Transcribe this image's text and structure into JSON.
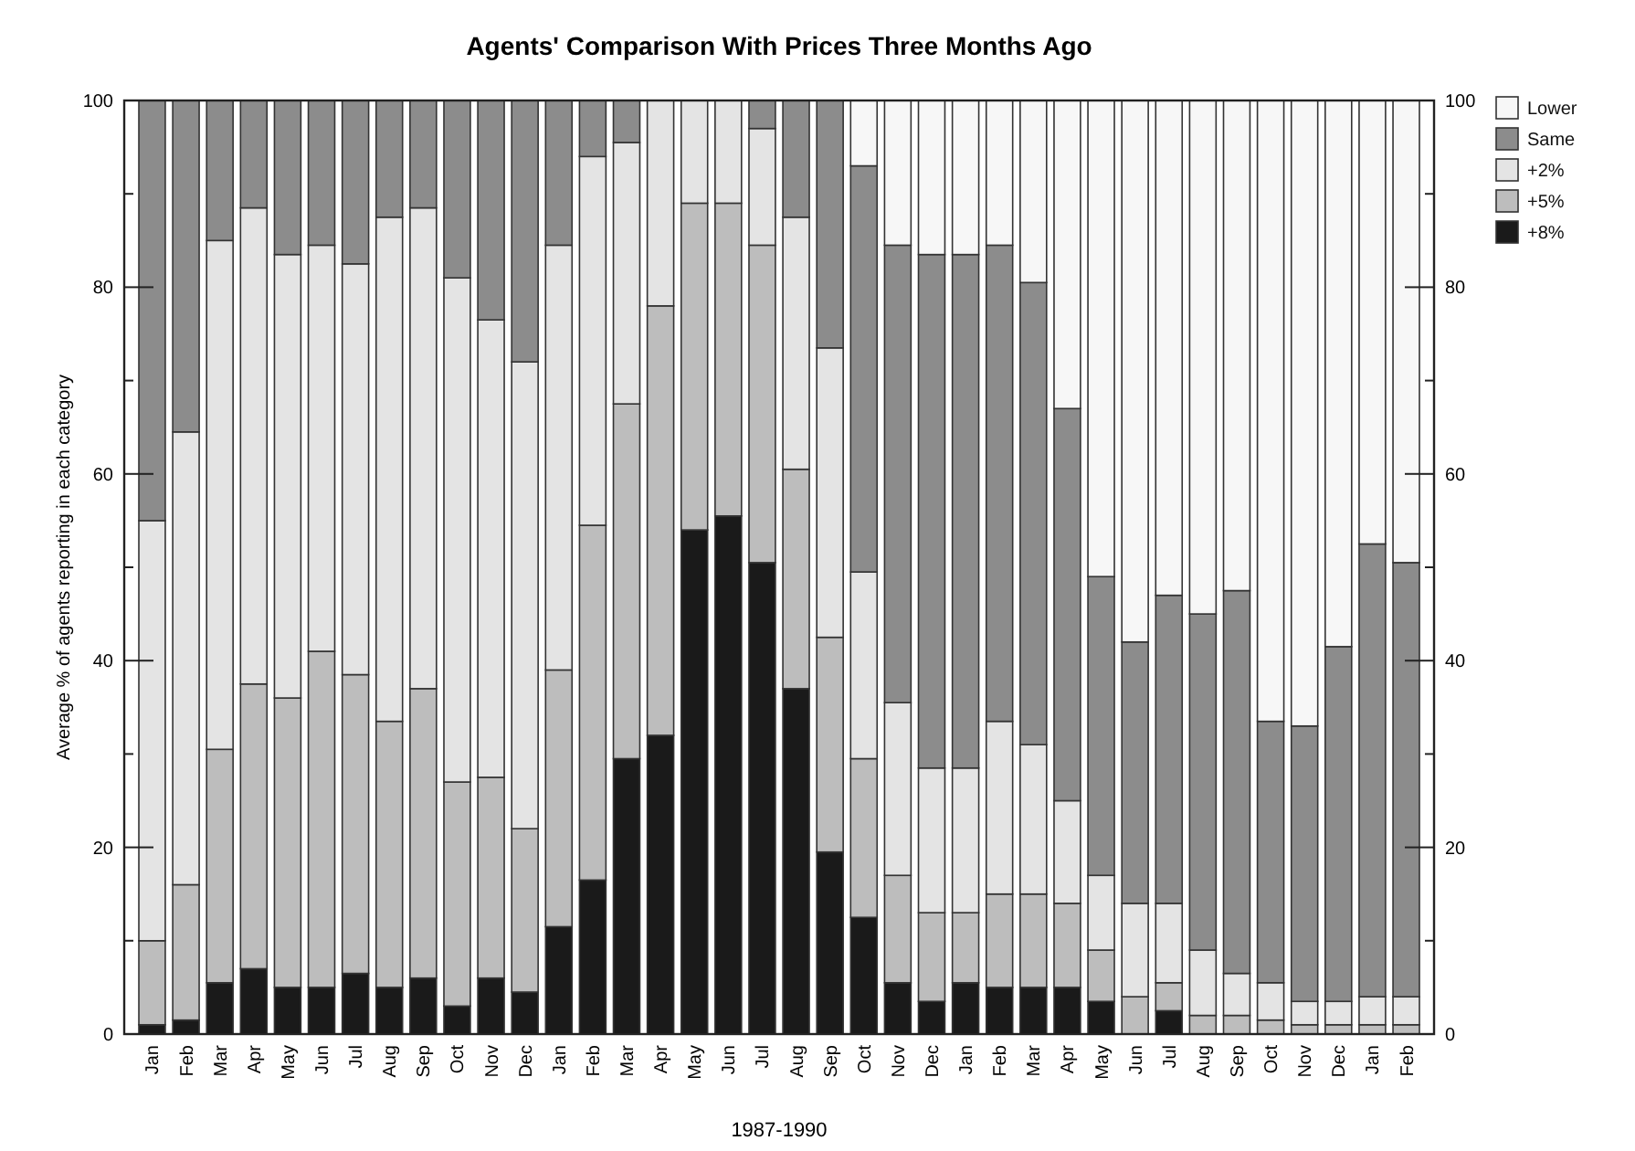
{
  "chart_data": {
    "type": "bar",
    "stacked": true,
    "title": "Agents' Comparison With Prices Three Months Ago",
    "xlabel": "1987-1990",
    "ylabel": "Average % of agents reporting in each category",
    "categories": [
      "Jan",
      "Feb",
      "Mar",
      "Apr",
      "May",
      "Jun",
      "Jul",
      "Aug",
      "Sep",
      "Oct",
      "Nov",
      "Dec",
      "Jan",
      "Feb",
      "Mar",
      "Apr",
      "May",
      "Jun",
      "Jul",
      "Aug",
      "Sep",
      "Oct",
      "Nov",
      "Dec",
      "Jan",
      "Feb",
      "Mar",
      "Apr",
      "May",
      "Jun",
      "Jul",
      "Aug",
      "Sep",
      "Oct",
      "Nov",
      "Dec",
      "Jan",
      "Feb"
    ],
    "series": [
      {
        "name": "+8%",
        "color": "#1a1a1a",
        "values": [
          1,
          1.5,
          5.5,
          7,
          5,
          5,
          6.5,
          5,
          6,
          3,
          6,
          4.5,
          11.5,
          16.5,
          29.5,
          32,
          54,
          55.5,
          50.5,
          37,
          19.5,
          12.5,
          5.5,
          3.5,
          5.5,
          5,
          5,
          5,
          3.5,
          0,
          2.5,
          0,
          0,
          0,
          0,
          0,
          0,
          0
        ]
      },
      {
        "name": "+5%",
        "color": "#bdbdbd",
        "values": [
          9,
          14.5,
          25,
          30.5,
          31,
          36,
          32,
          28.5,
          31,
          24,
          21.5,
          17.5,
          27.5,
          38,
          38,
          46,
          35,
          33.5,
          34,
          23.5,
          23,
          17,
          11.5,
          9.5,
          7.5,
          10,
          10,
          9,
          5.5,
          4,
          3,
          2,
          2,
          1.5,
          1,
          1,
          1,
          1
        ]
      },
      {
        "name": "+2%",
        "color": "#e4e4e4",
        "values": [
          45,
          48.5,
          54.5,
          51,
          47.5,
          43.5,
          44,
          54,
          51.5,
          54,
          49,
          50,
          45.5,
          39.5,
          28,
          22,
          11,
          11,
          12.5,
          27,
          31,
          20,
          18.5,
          15.5,
          15.5,
          18.5,
          16,
          11,
          8,
          10,
          8.5,
          7,
          4.5,
          4,
          2.5,
          2.5,
          3,
          3
        ]
      },
      {
        "name": "Same",
        "color": "#8c8c8c",
        "values": [
          45,
          35.5,
          15,
          11.5,
          16.5,
          15.5,
          17.5,
          12.5,
          11.5,
          19,
          23.5,
          28,
          15.5,
          6,
          4.5,
          0,
          0,
          0,
          3,
          12.5,
          26.5,
          43.5,
          49,
          55,
          55,
          51,
          49.5,
          42,
          32,
          28,
          33,
          36,
          41,
          28,
          29.5,
          38,
          48.5,
          46.5
        ]
      },
      {
        "name": "Lower",
        "color": "#f7f7f7",
        "values": [
          0,
          0,
          0,
          0,
          0,
          0,
          0,
          0,
          0,
          0,
          0,
          0,
          0,
          0,
          0,
          0,
          0,
          0,
          0,
          0,
          0,
          7,
          15.5,
          16.5,
          16.5,
          15.5,
          19.5,
          33,
          51,
          58,
          53,
          55,
          52.5,
          66.5,
          67,
          58.5,
          47.5,
          49.5
        ]
      }
    ],
    "ylim": [
      0,
      100
    ],
    "yticks": [
      0,
      {
        "value": 10,
        "label": null
      },
      20,
      {
        "value": 30,
        "label": null
      },
      40,
      {
        "value": 50,
        "label": null
      },
      60,
      {
        "value": 70,
        "label": null
      },
      80,
      {
        "value": 90,
        "label": null
      },
      100
    ],
    "y2lim": [
      0,
      100
    ],
    "y2ticks": [
      0,
      {
        "value": 10,
        "label": null
      },
      20,
      {
        "value": 30,
        "label": null
      },
      40,
      {
        "value": 50,
        "label": null
      },
      60,
      {
        "value": 70,
        "label": null
      },
      80,
      {
        "value": 90,
        "label": null
      },
      100
    ],
    "legend": "top right",
    "grid": false
  }
}
